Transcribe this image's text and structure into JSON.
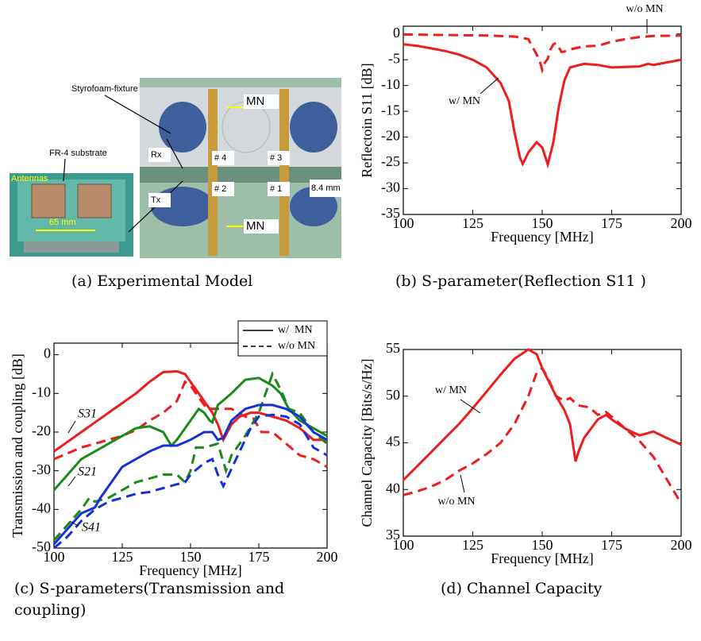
{
  "photo": {
    "labels": [
      "Styrofoam-fixture",
      "FR-4 substrate",
      "Antennas",
      "65 mm",
      "MN",
      "MN",
      "Rx",
      "Tx",
      "# 4",
      "# 3",
      "# 2",
      "# 1",
      "8.4 mm"
    ]
  },
  "captions": [
    [
      "(a) Experimental Model"
    ],
    [
      "(b) S-parameter(Reflection S11 )"
    ],
    [
      "(c) S-parameters(Transmission and",
      "coupling)"
    ],
    [
      "(d) Channel Capacity"
    ]
  ],
  "chart_data": [
    {
      "type": "line",
      "xlabel": "Frequency [MHz]",
      "ylabel": "Reflectoin S11 [dB]",
      "xlim": [
        100,
        200
      ],
      "ylim": [
        -35,
        1.5
      ],
      "xticks": [
        100,
        125,
        150,
        175,
        200
      ],
      "yticks": [
        0,
        -5,
        -10,
        -15,
        -20,
        -25,
        -30,
        -35
      ],
      "series": [
        {
          "color": "#ee1c1c",
          "dash": false,
          "x": [
            100,
            105,
            110,
            115,
            120,
            125,
            130,
            135,
            138,
            140,
            142,
            143,
            145,
            148,
            150,
            152,
            154,
            156,
            158,
            160,
            165,
            170,
            175,
            180,
            185,
            188,
            190,
            195,
            200
          ],
          "values": [
            -2,
            -2.3,
            -2.8,
            -3.3,
            -4,
            -5,
            -6.5,
            -9.5,
            -13,
            -19,
            -24,
            -25.2,
            -23,
            -21,
            -22,
            -25.3,
            -21,
            -14,
            -9,
            -6.5,
            -5.8,
            -6,
            -6.5,
            -6.4,
            -6.3,
            -5.8,
            -6,
            -5.5,
            -5
          ]
        },
        {
          "color": "#ee1c1c",
          "dash": true,
          "x": [
            100,
            130,
            140,
            145,
            147,
            149,
            150,
            151,
            152,
            153,
            154,
            155,
            157,
            158,
            160,
            165,
            170,
            175,
            180,
            185,
            190,
            200
          ],
          "values": [
            -0.1,
            -0.3,
            -0.5,
            -1,
            -3,
            -5,
            -7,
            -5.5,
            -4.8,
            -3,
            -2,
            -1.8,
            -3.5,
            -3.4,
            -3,
            -2.4,
            -2.3,
            -1.5,
            -1,
            -0.6,
            -0.4,
            -0.3
          ]
        }
      ],
      "annotations": [
        "w/o MN",
        "w/ MN"
      ]
    },
    {
      "type": "line",
      "xlabel": "Frequency [MHz]",
      "ylabel": "Transmission and coupling [dB]",
      "xlim": [
        100,
        200
      ],
      "ylim": [
        -50,
        3
      ],
      "xticks": [
        100,
        125,
        150,
        175,
        200
      ],
      "yticks": [
        0,
        -10,
        -20,
        -30,
        -40,
        -50
      ],
      "legend_position": "upper right",
      "legend": [
        {
          "label": "w/  MN",
          "dash": false
        },
        {
          "label": "w/o MN",
          "dash": true
        }
      ],
      "series": [
        {
          "color": "#ee1c1c",
          "dash": false,
          "x": [
            100,
            110,
            120,
            130,
            135,
            140,
            145,
            148,
            150,
            155,
            158,
            160,
            162,
            165,
            168,
            172,
            175,
            180,
            185,
            190,
            195,
            200
          ],
          "values": [
            -25,
            -20,
            -15,
            -10,
            -7,
            -4.5,
            -4.3,
            -5,
            -7,
            -12,
            -15,
            -18,
            -22,
            -18,
            -16,
            -15,
            -15,
            -16,
            -17,
            -19,
            -22,
            -22
          ]
        },
        {
          "color": "#ee1c1c",
          "dash": true,
          "x": [
            100,
            110,
            120,
            125,
            130,
            135,
            140,
            145,
            148,
            150,
            153,
            156,
            160,
            165,
            170,
            173,
            176,
            180,
            185,
            190,
            195,
            200
          ],
          "values": [
            -27,
            -24,
            -22,
            -21,
            -19.5,
            -17,
            -15,
            -12,
            -7,
            -8,
            -11,
            -14,
            -14,
            -14,
            -16,
            -16.5,
            -20,
            -20,
            -23,
            -26,
            -27,
            -29
          ]
        },
        {
          "color": "#1a8a1a",
          "dash": false,
          "x": [
            100,
            105,
            110,
            115,
            120,
            125,
            130,
            135,
            140,
            143,
            145,
            150,
            153,
            155,
            157,
            158,
            160,
            165,
            170,
            175,
            180,
            183,
            186,
            190,
            195,
            200
          ],
          "values": [
            -35,
            -31,
            -27,
            -25,
            -23,
            -21,
            -19,
            -18.5,
            -20,
            -23.5,
            -22,
            -17,
            -14,
            -15,
            -17,
            -17.5,
            -13,
            -10,
            -6.5,
            -6,
            -8,
            -10,
            -14,
            -17,
            -19,
            -21
          ]
        },
        {
          "color": "#1a8a1a",
          "dash": true,
          "x": [
            100,
            105,
            110,
            113,
            115,
            120,
            125,
            130,
            135,
            140,
            145,
            148,
            150,
            152,
            155,
            160,
            163,
            165,
            170,
            175,
            178,
            180,
            183,
            186,
            190,
            195,
            200
          ],
          "values": [
            -48,
            -44,
            -40,
            -37,
            -38,
            -37,
            -35,
            -33,
            -32,
            -31,
            -31,
            -33,
            -30,
            -24,
            -24,
            -23,
            -30,
            -26,
            -21,
            -15,
            -9,
            -5,
            -9,
            -14,
            -15,
            -20,
            -23
          ]
        },
        {
          "color": "#1530d8",
          "dash": false,
          "x": [
            100,
            105,
            110,
            115,
            117,
            120,
            125,
            130,
            135,
            140,
            145,
            150,
            155,
            158,
            160,
            162,
            165,
            170,
            175,
            180,
            185,
            190,
            195,
            200
          ],
          "values": [
            -49,
            -45,
            -41,
            -39.5,
            -37,
            -34,
            -29,
            -27,
            -25,
            -23.5,
            -23.5,
            -22,
            -20,
            -20,
            -22,
            -21.5,
            -17,
            -14,
            -13,
            -13,
            -14,
            -16,
            -20,
            -22
          ]
        },
        {
          "color": "#1530d8",
          "dash": true,
          "x": [
            100,
            105,
            110,
            115,
            120,
            125,
            130,
            135,
            140,
            145,
            148,
            150,
            155,
            158,
            160,
            162,
            164,
            168,
            172,
            175,
            180,
            185,
            190,
            195,
            200
          ],
          "values": [
            -50,
            -47,
            -43,
            -40,
            -38,
            -37,
            -36,
            -35.5,
            -34.5,
            -33.5,
            -33,
            -31,
            -28,
            -27,
            -31,
            -34,
            -31,
            -25,
            -19,
            -16,
            -15.5,
            -16,
            -18,
            -24,
            -26
          ]
        }
      ],
      "annotations": [
        "S31",
        "S21",
        "S41"
      ]
    },
    {
      "type": "line",
      "xlabel": "Frequency [MHz]",
      "ylabel": "Channel Capacity [Bits/s/Hz]",
      "xlim": [
        100,
        200
      ],
      "ylim": [
        35,
        55
      ],
      "xticks": [
        100,
        125,
        150,
        175,
        200
      ],
      "yticks": [
        35,
        40,
        45,
        50,
        55
      ],
      "series": [
        {
          "color": "#ee1c1c",
          "dash": false,
          "x": [
            100,
            105,
            110,
            115,
            120,
            125,
            130,
            135,
            140,
            145,
            148,
            150,
            155,
            158,
            160,
            162,
            163,
            165,
            170,
            173,
            175,
            180,
            185,
            190,
            195,
            200
          ],
          "values": [
            41,
            42.5,
            44,
            45.5,
            47,
            48.7,
            50.5,
            52.3,
            54,
            55,
            54.5,
            53,
            50,
            48.5,
            47,
            43,
            44,
            45.5,
            47.5,
            48,
            47.5,
            46.5,
            45.8,
            46.2,
            45.5,
            44.8
          ]
        },
        {
          "color": "#ee1c1c",
          "dash": true,
          "x": [
            100,
            105,
            110,
            115,
            120,
            125,
            130,
            135,
            140,
            145,
            148,
            150,
            152,
            155,
            158,
            160,
            163,
            167,
            170,
            173,
            175,
            180,
            185,
            190,
            195,
            200
          ],
          "values": [
            39.4,
            39.8,
            40.3,
            41,
            42,
            42.8,
            43.8,
            45,
            47,
            50,
            52.5,
            53,
            52,
            50,
            49.5,
            49.8,
            49,
            48.8,
            48,
            48.3,
            47.8,
            46.5,
            45.2,
            43.5,
            41,
            38.5
          ]
        }
      ],
      "annotations": [
        "w/ MN",
        "w/o MN"
      ]
    }
  ]
}
